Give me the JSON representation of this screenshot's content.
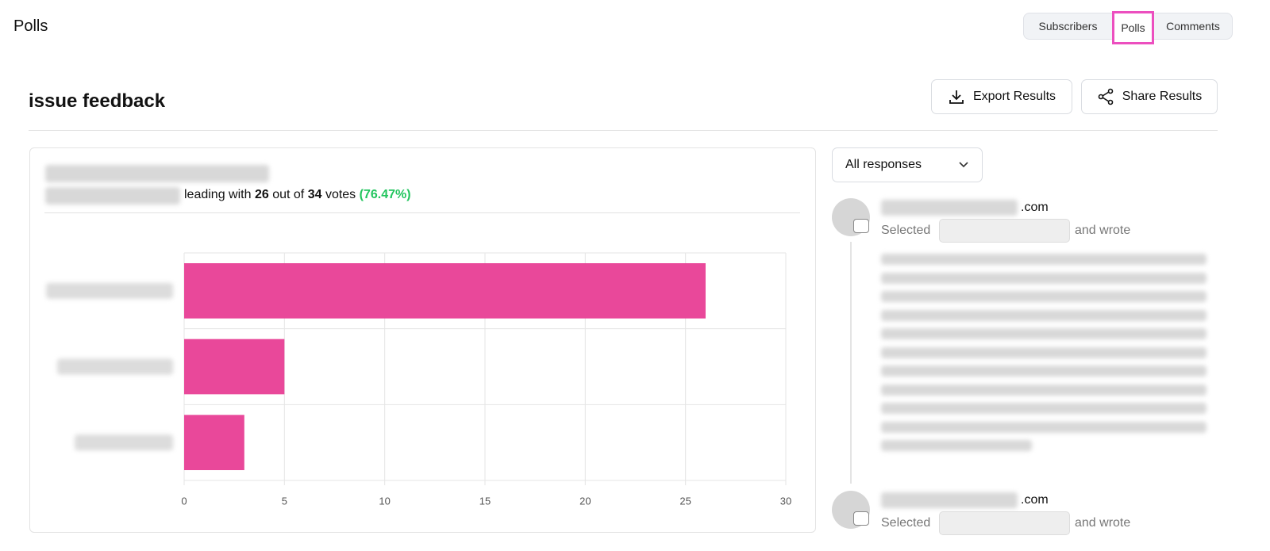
{
  "header": {
    "title": "Polls",
    "tabs": [
      "Subscribers",
      "Polls",
      "Comments"
    ],
    "active_tab": 1
  },
  "poll": {
    "title": "issue feedback",
    "actions": [
      "Export Results",
      "Share Results"
    ],
    "summary": {
      "before": "leading with",
      "leading_votes": 26,
      "middle": "out of",
      "total_votes": 34,
      "after": "votes",
      "percent_label": "(76.47%)"
    }
  },
  "chart_data": {
    "type": "bar",
    "orientation": "horizontal",
    "categories": [
      null,
      null,
      null
    ],
    "values": [
      26,
      5,
      3
    ],
    "color": "#e9489a",
    "xlim": [
      0,
      30
    ],
    "xticks": [
      0,
      5,
      10,
      15,
      20,
      25,
      30
    ],
    "grid": true
  },
  "responses": {
    "filter": "All responses",
    "items": [
      {
        "email_suffix": ".com",
        "selected": "Selected",
        "wrote": "and wrote"
      },
      {
        "email_suffix": ".com",
        "selected": "Selected",
        "wrote": "and wrote"
      }
    ]
  }
}
